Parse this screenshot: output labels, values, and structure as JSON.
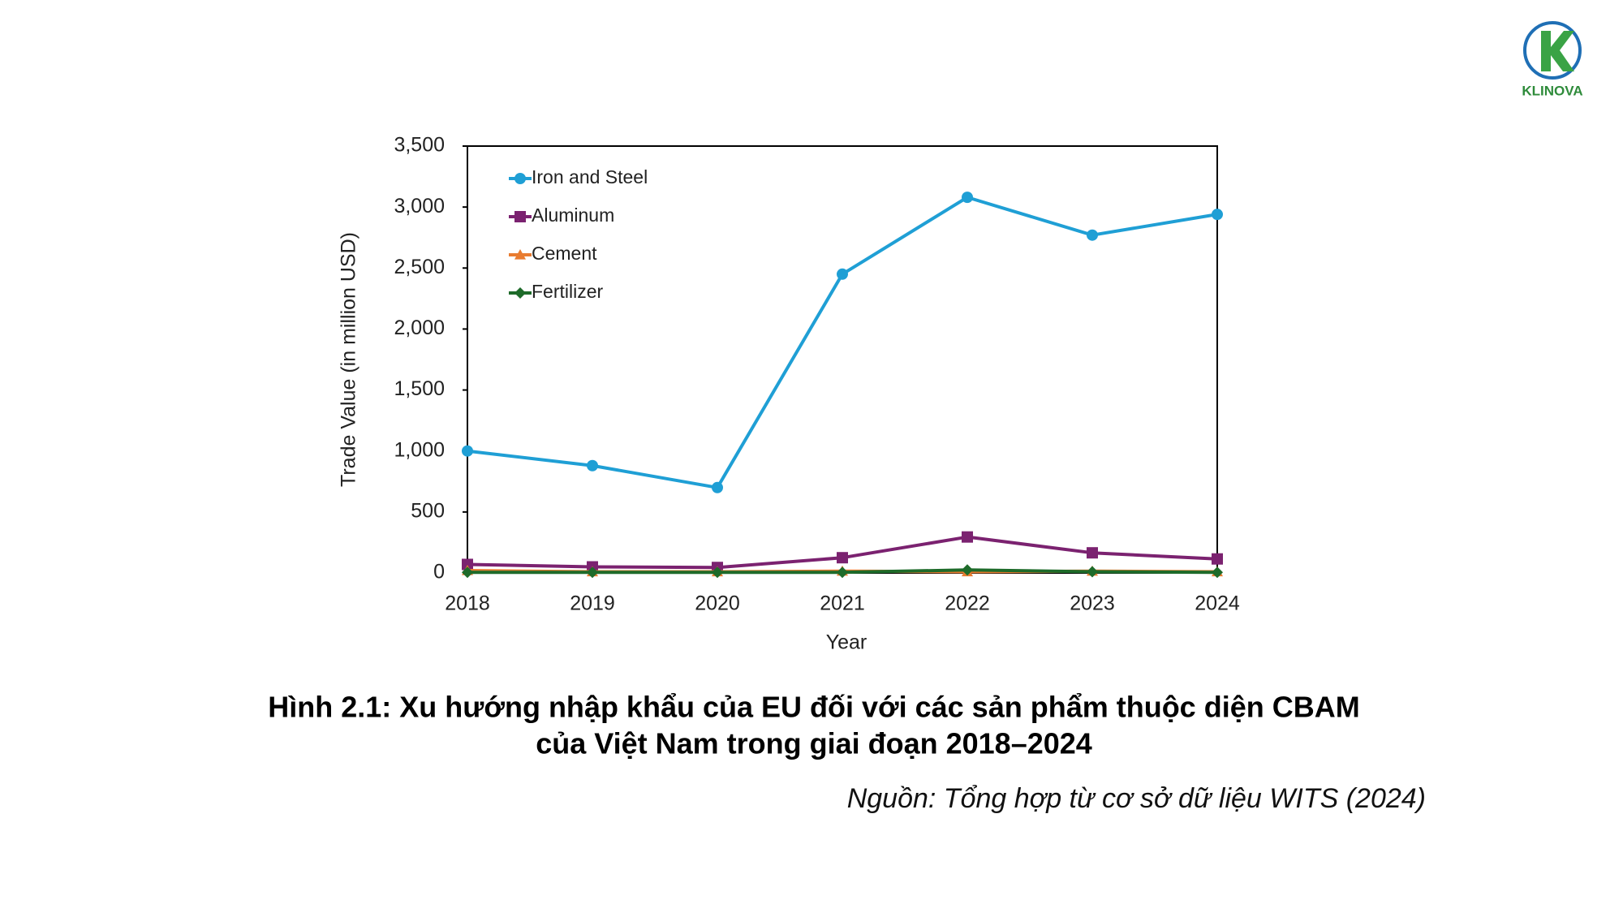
{
  "logo": {
    "text": "KLINOVA"
  },
  "chart_data": {
    "type": "line",
    "x_label": "Year",
    "y_label": "Trade Value (in million USD)",
    "categories": [
      "2018",
      "2019",
      "2020",
      "2021",
      "2022",
      "2023",
      "2024"
    ],
    "series": [
      {
        "name": "Iron and Steel",
        "color": "#1f9fd5",
        "marker": "circle",
        "values": [
          1000,
          880,
          700,
          2450,
          3080,
          2770,
          2940
        ]
      },
      {
        "name": "Aluminum",
        "color": "#7b2270",
        "marker": "square",
        "values": [
          70,
          50,
          45,
          125,
          295,
          165,
          115
        ]
      },
      {
        "name": "Cement",
        "color": "#e97c30",
        "marker": "triangle",
        "values": [
          20,
          10,
          10,
          15,
          10,
          15,
          10
        ]
      },
      {
        "name": "Fertilizer",
        "color": "#1e6b2a",
        "marker": "diamond",
        "values": [
          5,
          5,
          5,
          5,
          25,
          10,
          5
        ]
      }
    ],
    "ylim": [
      0,
      3500
    ],
    "yticks": [
      0,
      500,
      {
        "value": 1000,
        "label": "1,000"
      },
      {
        "value": 1500,
        "label": "1,500"
      },
      {
        "value": 2000,
        "label": "2,000"
      },
      {
        "value": 2500,
        "label": "2,500"
      },
      {
        "value": 3000,
        "label": "3,000"
      },
      {
        "value": 3500,
        "label": "3,500"
      }
    ],
    "grid": false,
    "legend": "top-left"
  },
  "caption": {
    "title_line1": "Hình 2.1: Xu hướng nhập khẩu của EU đối với các sản phẩm thuộc diện CBAM",
    "title_line2": "của Việt Nam trong giai đoạn 2018–2024",
    "source": "Nguồn: Tổng hợp từ cơ sở dữ liệu WITS (2024)"
  }
}
